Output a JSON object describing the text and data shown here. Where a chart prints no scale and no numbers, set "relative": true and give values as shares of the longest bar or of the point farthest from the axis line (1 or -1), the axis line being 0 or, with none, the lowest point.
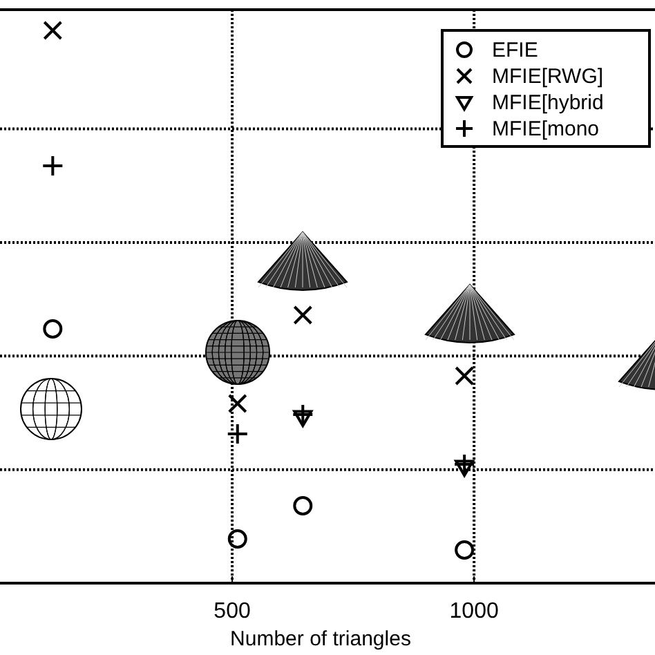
{
  "chart_data": {
    "type": "scatter",
    "xlabel": "Number of triangles",
    "relative": true,
    "xlim": [
      20,
      1374
    ],
    "xticks": [
      500,
      1000
    ],
    "grid": true,
    "legend": "top right",
    "series": [
      {
        "name": "EFIE",
        "color": "#000000",
        "marker": "circle",
        "x": [
          129,
          511,
          646,
          980
        ],
        "values": [
          0.46,
          0.08,
          0.14,
          0.06
        ]
      },
      {
        "name": "MFIE[RWG]",
        "color": "#000000",
        "marker": "cross",
        "x": [
          129,
          511,
          646,
          980
        ],
        "values": [
          1,
          0.325,
          0.485,
          0.375
        ]
      },
      {
        "name": "MFIE[hybrid",
        "color": "#000000",
        "marker": "triangle",
        "x": [
          646,
          980
        ],
        "values": [
          0.3,
          0.21
        ]
      },
      {
        "name": "MFIE[mono",
        "color": "#000000",
        "marker": "plus",
        "x": [
          129,
          511,
          646,
          980
        ],
        "values": [
          0.755,
          0.27,
          0.305,
          0.215
        ]
      }
    ]
  }
}
